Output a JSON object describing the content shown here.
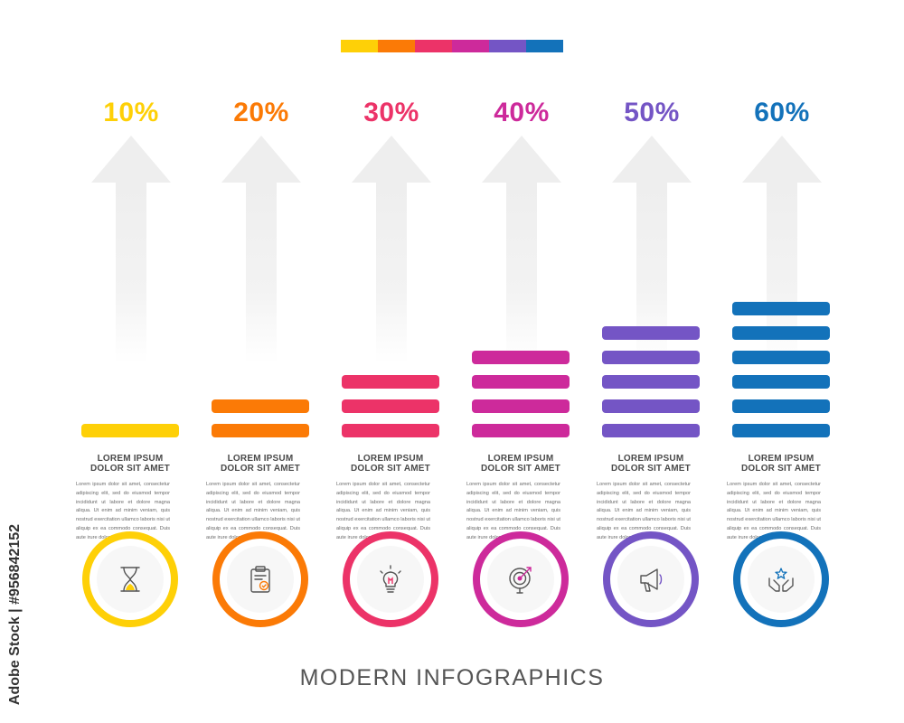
{
  "palette": [
    "#fed007",
    "#fb7a06",
    "#ec3368",
    "#cd2a9b",
    "#7455c5",
    "#1372ba"
  ],
  "columns": [
    {
      "percent": "10%",
      "color": "#fed007",
      "bar_count": 1,
      "icon": "hourglass-icon",
      "title_line1": "LOREM IPSUM",
      "title_line2": "DOLOR SIT AMET",
      "description": "Lorem ipsum dolor sit amet, consectetur adipiscing elit, sed do eiusmod tempor incididunt ut labore et dolore magna aliqua. Ut enim ad minim veniam, quis nostrud exercitation ullamco laboris nisi ut aliquip ex ea commodo consequat. Duis aute irure dolor in reprehenderit"
    },
    {
      "percent": "20%",
      "color": "#fb7a06",
      "bar_count": 2,
      "icon": "clipboard-check-icon",
      "title_line1": "LOREM IPSUM",
      "title_line2": "DOLOR SIT AMET",
      "description": "Lorem ipsum dolor sit amet, consectetur adipiscing elit, sed do eiusmod tempor incididunt ut labore et dolore magna aliqua. Ut enim ad minim veniam, quis nostrud exercitation ullamco laboris nisi ut aliquip ex ea commodo consequat. Duis aute irure dolor in reprehenderit"
    },
    {
      "percent": "30%",
      "color": "#ec3368",
      "bar_count": 3,
      "icon": "lightbulb-icon",
      "title_line1": "LOREM IPSUM",
      "title_line2": "DOLOR SIT AMET",
      "description": "Lorem ipsum dolor sit amet, consectetur adipiscing elit, sed do eiusmod tempor incididunt ut labore et dolore magna aliqua. Ut enim ad minim veniam, quis nostrud exercitation ullamco laboris nisi ut aliquip ex ea commodo consequat. Duis aute irure dolor in reprehenderit"
    },
    {
      "percent": "40%",
      "color": "#cd2a9b",
      "bar_count": 4,
      "icon": "target-search-icon",
      "title_line1": "LOREM IPSUM",
      "title_line2": "DOLOR SIT AMET",
      "description": "Lorem ipsum dolor sit amet, consectetur adipiscing elit, sed do eiusmod tempor incididunt ut labore et dolore magna aliqua. Ut enim ad minim veniam, quis nostrud exercitation ullamco laboris nisi ut aliquip ex ea commodo consequat. Duis aute irure dolor in reprehenderit"
    },
    {
      "percent": "50%",
      "color": "#7455c5",
      "bar_count": 5,
      "icon": "megaphone-icon",
      "title_line1": "LOREM IPSUM",
      "title_line2": "DOLOR SIT AMET",
      "description": "Lorem ipsum dolor sit amet, consectetur adipiscing elit, sed do eiusmod tempor incididunt ut labore et dolore magna aliqua. Ut enim ad minim veniam, quis nostrud exercitation ullamco laboris nisi ut aliquip ex ea commodo consequat. Duis aute irure dolor in reprehenderit"
    },
    {
      "percent": "60%",
      "color": "#1372ba",
      "bar_count": 6,
      "icon": "hands-star-icon",
      "title_line1": "LOREM IPSUM",
      "title_line2": "DOLOR SIT AMET",
      "description": "Lorem ipsum dolor sit amet, consectetur adipiscing elit, sed do eiusmod tempor incididunt ut labore et dolore magna aliqua. Ut enim ad minim veniam, quis nostrud exercitation ullamco laboris nisi ut aliquip ex ea commodo consequat. Duis aute irure dolor in reprehenderit"
    }
  ],
  "footer_title": "MODERN INFOGRAPHICS",
  "stock_mark": "Adobe Stock | #956842152"
}
